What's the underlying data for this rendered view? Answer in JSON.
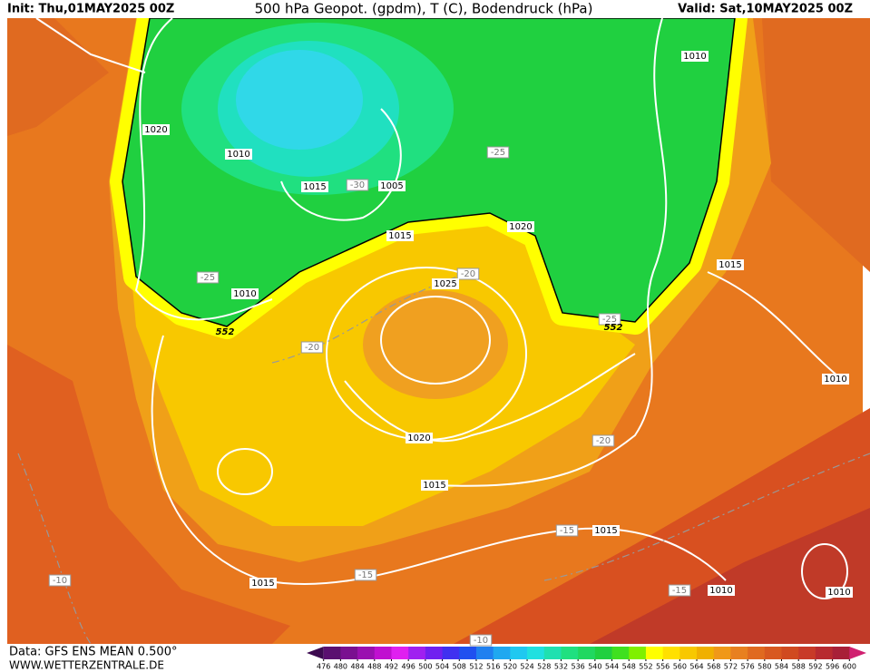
{
  "header": {
    "init": "Init: Thu,01MAY2025 00Z",
    "title": "500 hPa Geopot. (gpdm), T (C), Bodendruck (hPa)",
    "valid": "Valid: Sat,10MAY2025 00Z"
  },
  "footer": {
    "data": "Data: GFS ENS MEAN 0.500°",
    "site": "WWW.WETTERZENTRALE.DE"
  },
  "contours": [
    "1010",
    "1020",
    "1010",
    "1015",
    "-30",
    "1005",
    "-25",
    "1015",
    "1020",
    "-20",
    "-25",
    "1010",
    "1025",
    "552",
    "-20",
    "-25",
    "552",
    "1015",
    "1010",
    "1020",
    "-20",
    "1015",
    "-15",
    "1015",
    "1015",
    "-15",
    "-10",
    "-15",
    "1010",
    "1010",
    "-10"
  ],
  "colorbar": {
    "ticks": [
      476,
      480,
      484,
      488,
      492,
      496,
      500,
      504,
      508,
      512,
      516,
      520,
      524,
      528,
      532,
      536,
      540,
      544,
      548,
      552,
      556,
      560,
      564,
      568,
      572,
      576,
      580,
      584,
      588,
      592,
      596,
      600
    ],
    "colors": [
      "#3c0a50",
      "#5a1070",
      "#7a1090",
      "#9a10b0",
      "#c010d0",
      "#e020f0",
      "#a020f0",
      "#7020f0",
      "#4030f0",
      "#2050f0",
      "#2080f0",
      "#20a8f0",
      "#20c8f0",
      "#20e0e0",
      "#20e0b0",
      "#20e080",
      "#20d860",
      "#20d040",
      "#40e020",
      "#80f000",
      "#ffff00",
      "#ffe000",
      "#f8c800",
      "#f0b000",
      "#f09818",
      "#e88020",
      "#e06a20",
      "#d85820",
      "#d04a20",
      "#c83a28",
      "#b82a30",
      "#a82038",
      "#d02070"
    ]
  }
}
